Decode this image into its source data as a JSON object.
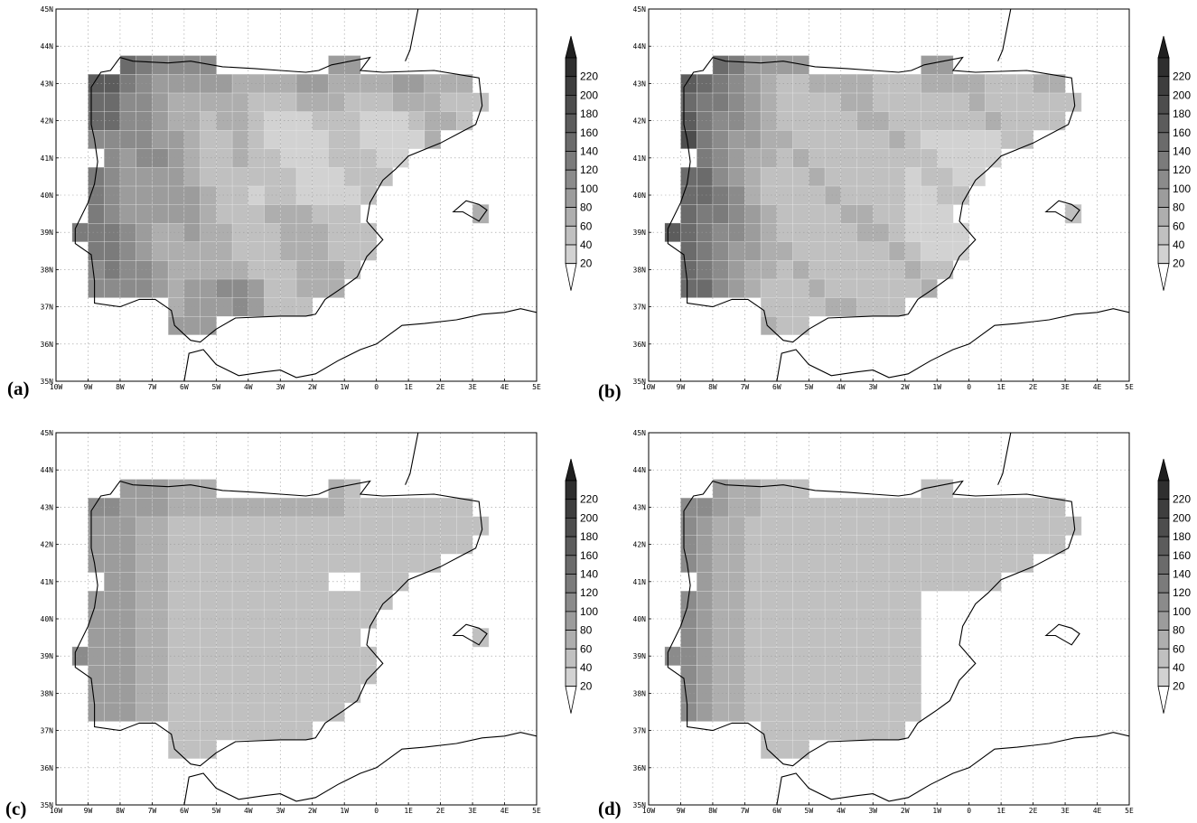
{
  "figure": {
    "panels": [
      {
        "label": "(a)",
        "field": "a"
      },
      {
        "label": "(b)",
        "field": "b"
      },
      {
        "label": "(c)",
        "field": "c"
      },
      {
        "label": "(d)",
        "field": "d"
      }
    ],
    "axes": {
      "lon_ticks": [
        "10W",
        "9W",
        "8W",
        "7W",
        "6W",
        "5W",
        "4W",
        "3W",
        "2W",
        "1W",
        "0",
        "1E",
        "2E",
        "3E",
        "4E",
        "5E"
      ],
      "lat_ticks": [
        "35N",
        "36N",
        "37N",
        "38N",
        "39N",
        "40N",
        "41N",
        "42N",
        "43N",
        "44N",
        "45N"
      ],
      "lon_range": [
        -10,
        5
      ],
      "lat_range": [
        35,
        45
      ],
      "grid": "dotted"
    },
    "colorbar": {
      "labels": [
        "20",
        "40",
        "60",
        "80",
        "100",
        "120",
        "140",
        "160",
        "180",
        "200",
        "220"
      ],
      "extend": "both"
    },
    "shade_colors": [
      "#ffffff",
      "#d2d2d2",
      "#c0c0c0",
      "#aeaeae",
      "#9c9c9c",
      "#8b8b8b",
      "#7b7b7b",
      "#6b6b6b",
      "#5c5c5c",
      "#4d4d4d",
      "#3e3e3e",
      "#2f2f2f",
      "#202020"
    ]
  }
}
